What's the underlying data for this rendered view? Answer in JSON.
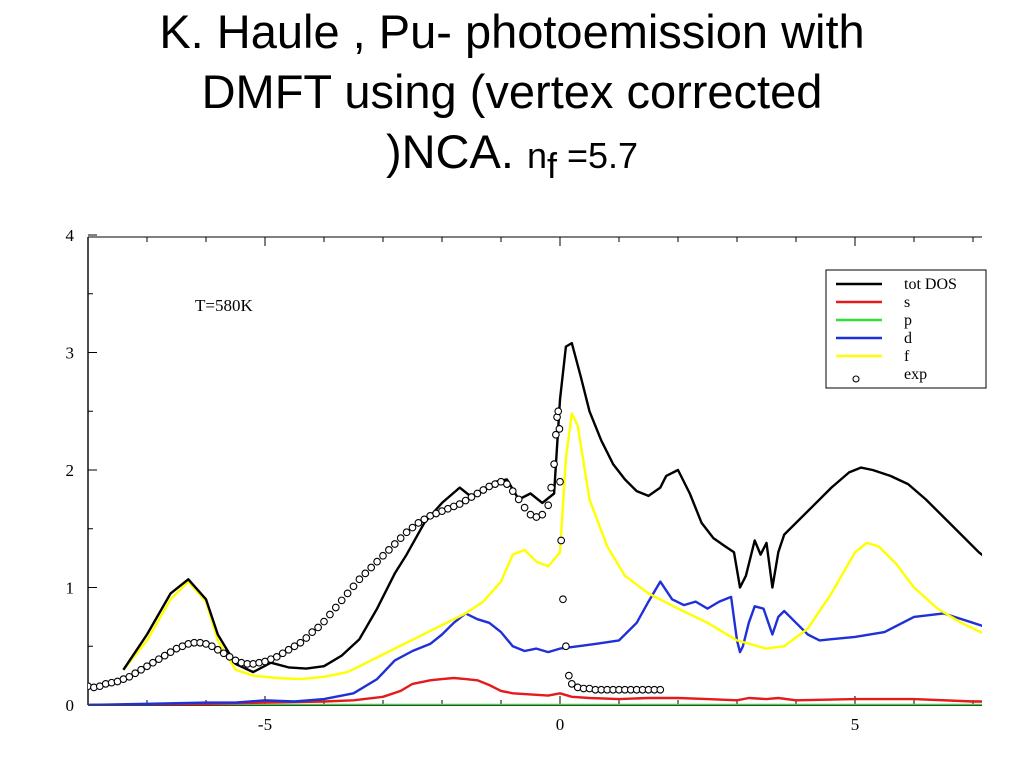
{
  "title": {
    "line1": "K. Haule , Pu- photoemission with",
    "line2": "DMFT using (vertex corrected",
    "line3_a": ")NCA. ",
    "line3_n": "n",
    "line3_sub": "f",
    "line3_b": " =5.7"
  },
  "chart_data": {
    "type": "line",
    "title": "",
    "xlabel": "",
    "ylabel": "",
    "xlim": [
      -8,
      7.3
    ],
    "ylim": [
      0,
      4
    ],
    "x_ticks": [
      -5,
      0,
      5
    ],
    "y_ticks": [
      0,
      1,
      2,
      3,
      4
    ],
    "annotation": "T=580K",
    "legend_position": "top-right",
    "series": [
      {
        "name": "tot DOS",
        "color": "#000000",
        "style": "line",
        "x": [
          -7.4,
          -7.0,
          -6.6,
          -6.3,
          -6.0,
          -5.8,
          -5.5,
          -5.2,
          -4.9,
          -4.6,
          -4.3,
          -4.0,
          -3.7,
          -3.4,
          -3.1,
          -2.8,
          -2.6,
          -2.3,
          -2.0,
          -1.7,
          -1.5,
          -1.3,
          -1.1,
          -0.9,
          -0.7,
          -0.5,
          -0.3,
          -0.1,
          0.0,
          0.1,
          0.2,
          0.35,
          0.5,
          0.7,
          0.9,
          1.1,
          1.3,
          1.5,
          1.7,
          1.8,
          2.0,
          2.2,
          2.4,
          2.6,
          2.8,
          2.95,
          3.05,
          3.15,
          3.3,
          3.4,
          3.5,
          3.6,
          3.7,
          3.8,
          4.0,
          4.3,
          4.6,
          4.9,
          5.1,
          5.3,
          5.6,
          5.9,
          6.2,
          6.5,
          6.8,
          7.1,
          7.3
        ],
        "y": [
          0.3,
          0.6,
          0.95,
          1.07,
          0.9,
          0.6,
          0.35,
          0.28,
          0.36,
          0.32,
          0.31,
          0.33,
          0.42,
          0.56,
          0.82,
          1.12,
          1.28,
          1.55,
          1.72,
          1.85,
          1.77,
          1.83,
          1.9,
          1.92,
          1.75,
          1.8,
          1.72,
          1.8,
          2.6,
          3.05,
          3.08,
          2.8,
          2.5,
          2.25,
          2.05,
          1.92,
          1.82,
          1.78,
          1.85,
          1.95,
          2.0,
          1.8,
          1.55,
          1.42,
          1.35,
          1.3,
          1.0,
          1.1,
          1.4,
          1.28,
          1.38,
          1.0,
          1.3,
          1.45,
          1.55,
          1.7,
          1.85,
          1.98,
          2.02,
          2.0,
          1.95,
          1.88,
          1.75,
          1.6,
          1.45,
          1.3,
          1.22
        ]
      },
      {
        "name": "s",
        "color": "#e41a1c",
        "style": "line",
        "x": [
          -8.0,
          -6.0,
          -5.0,
          -4.0,
          -3.5,
          -3.0,
          -2.7,
          -2.5,
          -2.2,
          -2.0,
          -1.8,
          -1.6,
          -1.4,
          -1.2,
          -1.0,
          -0.8,
          -0.5,
          -0.2,
          0.0,
          0.2,
          0.5,
          1.0,
          1.5,
          2.0,
          2.5,
          3.0,
          3.2,
          3.5,
          3.7,
          4.0,
          5.0,
          6.0,
          7.0,
          7.3
        ],
        "y": [
          0.0,
          0.01,
          0.02,
          0.03,
          0.04,
          0.07,
          0.12,
          0.18,
          0.21,
          0.22,
          0.23,
          0.22,
          0.21,
          0.17,
          0.12,
          0.1,
          0.09,
          0.08,
          0.1,
          0.07,
          0.06,
          0.05,
          0.06,
          0.06,
          0.05,
          0.04,
          0.06,
          0.05,
          0.06,
          0.04,
          0.05,
          0.05,
          0.03,
          0.03
        ]
      },
      {
        "name": "p",
        "color": "#33dd33",
        "style": "line",
        "x": [
          -8.0,
          7.3
        ],
        "y": [
          0.0,
          0.0
        ]
      },
      {
        "name": "d",
        "color": "#1f30d8",
        "style": "line",
        "x": [
          -8.0,
          -7.0,
          -6.0,
          -5.5,
          -5.0,
          -4.5,
          -4.0,
          -3.5,
          -3.1,
          -2.8,
          -2.5,
          -2.2,
          -2.0,
          -1.8,
          -1.6,
          -1.4,
          -1.2,
          -1.0,
          -0.8,
          -0.6,
          -0.4,
          -0.2,
          0.0,
          0.3,
          0.6,
          1.0,
          1.3,
          1.5,
          1.7,
          1.9,
          2.1,
          2.3,
          2.5,
          2.7,
          2.9,
          3.0,
          3.05,
          3.1,
          3.2,
          3.3,
          3.45,
          3.6,
          3.7,
          3.8,
          4.0,
          4.2,
          4.4,
          4.6,
          5.0,
          5.5,
          6.0,
          6.5,
          7.0,
          7.3
        ],
        "y": [
          0.0,
          0.01,
          0.02,
          0.02,
          0.04,
          0.03,
          0.05,
          0.1,
          0.22,
          0.38,
          0.46,
          0.52,
          0.6,
          0.7,
          0.78,
          0.73,
          0.7,
          0.62,
          0.5,
          0.46,
          0.48,
          0.45,
          0.48,
          0.5,
          0.52,
          0.55,
          0.7,
          0.88,
          1.05,
          0.9,
          0.85,
          0.88,
          0.82,
          0.88,
          0.92,
          0.55,
          0.45,
          0.5,
          0.7,
          0.84,
          0.82,
          0.6,
          0.75,
          0.8,
          0.7,
          0.6,
          0.55,
          0.56,
          0.58,
          0.62,
          0.75,
          0.78,
          0.7,
          0.65
        ]
      },
      {
        "name": "f",
        "color": "#ffff00",
        "style": "line",
        "x": [
          -7.4,
          -7.0,
          -6.6,
          -6.3,
          -6.0,
          -5.8,
          -5.5,
          -5.2,
          -4.8,
          -4.4,
          -4.0,
          -3.6,
          -3.2,
          -2.8,
          -2.4,
          -2.0,
          -1.6,
          -1.3,
          -1.0,
          -0.8,
          -0.6,
          -0.4,
          -0.2,
          0.0,
          0.1,
          0.2,
          0.3,
          0.5,
          0.8,
          1.1,
          1.5,
          2.0,
          2.5,
          3.0,
          3.5,
          3.8,
          4.2,
          4.6,
          5.0,
          5.2,
          5.4,
          5.7,
          6.0,
          6.4,
          6.8,
          7.3
        ],
        "y": [
          0.3,
          0.55,
          0.9,
          1.05,
          0.88,
          0.55,
          0.3,
          0.25,
          0.23,
          0.22,
          0.24,
          0.28,
          0.38,
          0.48,
          0.58,
          0.68,
          0.78,
          0.88,
          1.05,
          1.28,
          1.32,
          1.22,
          1.18,
          1.3,
          2.1,
          2.48,
          2.38,
          1.75,
          1.35,
          1.1,
          0.95,
          0.82,
          0.7,
          0.55,
          0.48,
          0.5,
          0.65,
          0.95,
          1.3,
          1.38,
          1.35,
          1.2,
          1.0,
          0.82,
          0.7,
          0.58
        ]
      },
      {
        "name": "exp",
        "color": "#000000",
        "style": "markers",
        "x": [
          -8.0,
          -7.9,
          -7.8,
          -7.7,
          -7.6,
          -7.5,
          -7.4,
          -7.3,
          -7.2,
          -7.1,
          -7.0,
          -6.9,
          -6.8,
          -6.7,
          -6.6,
          -6.5,
          -6.4,
          -6.3,
          -6.2,
          -6.1,
          -6.0,
          -5.9,
          -5.8,
          -5.7,
          -5.6,
          -5.5,
          -5.4,
          -5.3,
          -5.2,
          -5.1,
          -5.0,
          -4.9,
          -4.8,
          -4.7,
          -4.6,
          -4.5,
          -4.4,
          -4.3,
          -4.2,
          -4.1,
          -4.0,
          -3.9,
          -3.8,
          -3.7,
          -3.6,
          -3.5,
          -3.4,
          -3.3,
          -3.2,
          -3.1,
          -3.0,
          -2.9,
          -2.8,
          -2.7,
          -2.6,
          -2.5,
          -2.4,
          -2.3,
          -2.2,
          -2.1,
          -2.0,
          -1.9,
          -1.8,
          -1.7,
          -1.6,
          -1.5,
          -1.4,
          -1.3,
          -1.2,
          -1.1,
          -1.0,
          -0.9,
          -0.8,
          -0.7,
          -0.6,
          -0.5,
          -0.4,
          -0.3,
          -0.2,
          -0.15,
          -0.1,
          -0.07,
          -0.05,
          -0.03,
          -0.01,
          0.0,
          0.02,
          0.05,
          0.1,
          0.15,
          0.2,
          0.3,
          0.4,
          0.5,
          0.6,
          0.7,
          0.8,
          0.9,
          1.0,
          1.1,
          1.2,
          1.3,
          1.4,
          1.5,
          1.6,
          1.7
        ],
        "y": [
          0.16,
          0.15,
          0.16,
          0.18,
          0.19,
          0.2,
          0.22,
          0.24,
          0.27,
          0.3,
          0.33,
          0.36,
          0.39,
          0.42,
          0.45,
          0.48,
          0.5,
          0.52,
          0.53,
          0.53,
          0.52,
          0.5,
          0.47,
          0.44,
          0.41,
          0.38,
          0.36,
          0.35,
          0.35,
          0.36,
          0.37,
          0.39,
          0.41,
          0.44,
          0.47,
          0.5,
          0.53,
          0.57,
          0.62,
          0.66,
          0.71,
          0.77,
          0.83,
          0.89,
          0.95,
          1.01,
          1.07,
          1.12,
          1.17,
          1.22,
          1.27,
          1.32,
          1.37,
          1.42,
          1.47,
          1.51,
          1.55,
          1.58,
          1.61,
          1.63,
          1.65,
          1.67,
          1.69,
          1.71,
          1.74,
          1.77,
          1.8,
          1.83,
          1.86,
          1.88,
          1.9,
          1.88,
          1.82,
          1.75,
          1.68,
          1.62,
          1.6,
          1.62,
          1.7,
          1.85,
          2.05,
          2.3,
          2.45,
          2.5,
          2.35,
          1.9,
          1.4,
          0.9,
          0.5,
          0.25,
          0.18,
          0.15,
          0.14,
          0.14,
          0.13,
          0.13,
          0.13,
          0.13,
          0.13,
          0.13,
          0.13,
          0.13,
          0.13,
          0.13,
          0.13,
          0.13
        ]
      }
    ]
  }
}
